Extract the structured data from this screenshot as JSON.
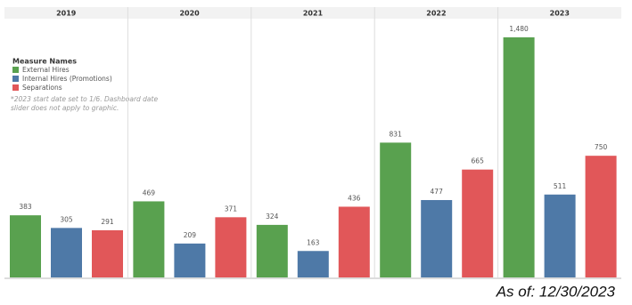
{
  "chart_data": {
    "type": "bar",
    "categories": [
      "2019",
      "2020",
      "2021",
      "2022",
      "2023"
    ],
    "legend_title": "Measure Names",
    "series": [
      {
        "name": "External Hires",
        "color": "#59a14f",
        "values": [
          383,
          469,
          324,
          831,
          1480
        ],
        "value_labels": [
          "383",
          "469",
          "324",
          "831",
          "1,480"
        ]
      },
      {
        "name": "Internal Hires (Promotions)",
        "color": "#4e79a7",
        "values": [
          305,
          209,
          163,
          477,
          511
        ]
      },
      {
        "name": "Separations",
        "color": "#e15759",
        "values": [
          291,
          371,
          436,
          665,
          750
        ]
      }
    ],
    "annotation": [
      "*2023 start date set to 1/6. Dashboard date",
      "slider does not apply to graphic."
    ],
    "footer": "As of: 12/30/2023"
  }
}
